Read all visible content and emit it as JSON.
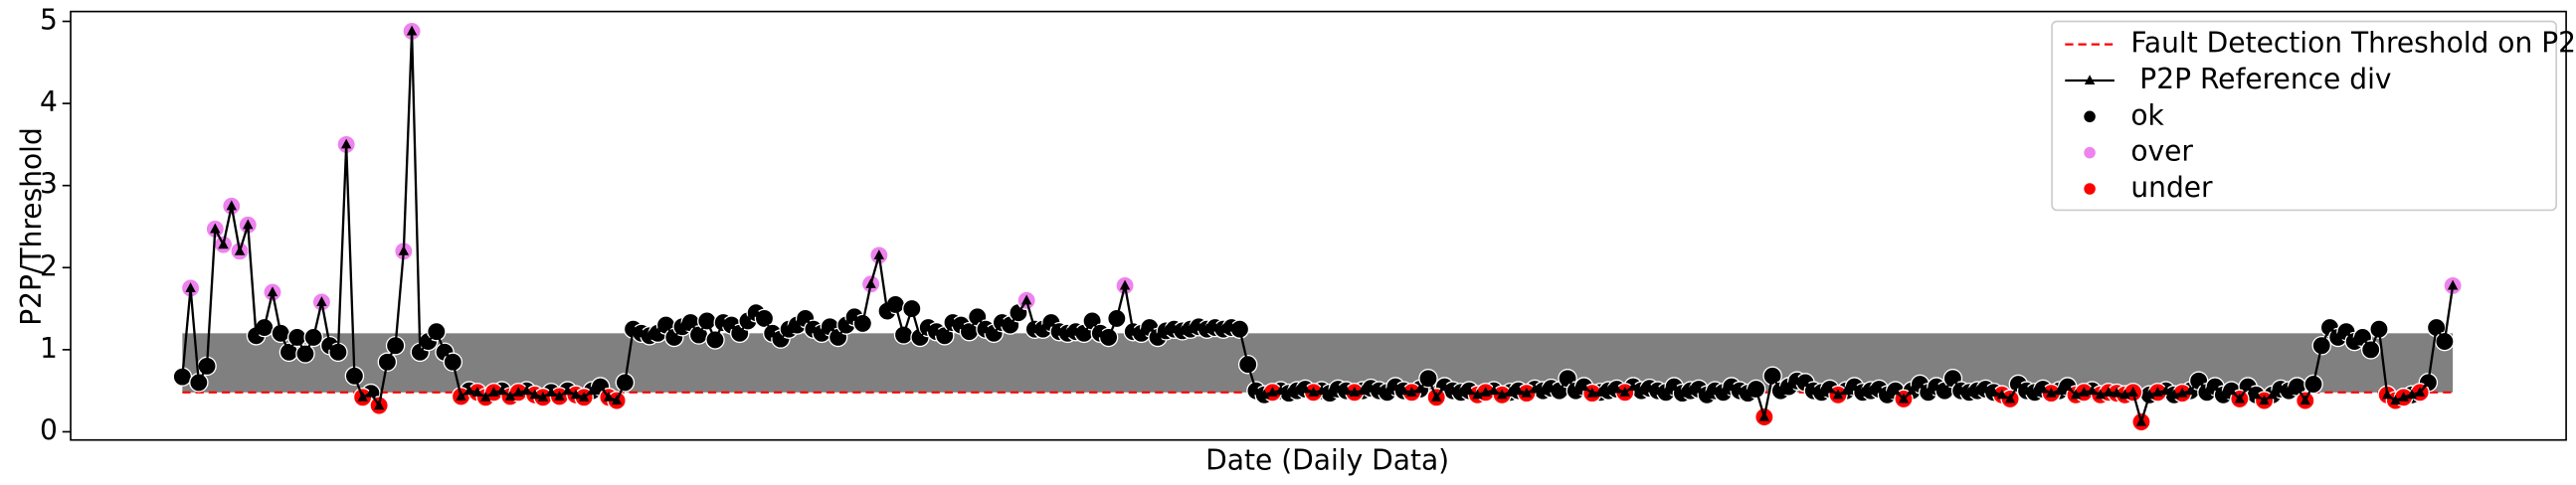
{
  "chart_data": {
    "type": "line",
    "ylabel": "P2P/Threshold",
    "xlabel": "Date (Daily Data)",
    "ylim": [
      -0.1,
      5.12
    ],
    "yticks": [
      0,
      1,
      2,
      3,
      4,
      5
    ],
    "legend": "upper right",
    "threshold": {
      "name": "Fault Detection Threshold on P2P",
      "color": "#ff0000",
      "value": 0.48
    },
    "band": {
      "color": "#808080",
      "upper": 1.2
    },
    "series": [
      {
        "name": " P2P Reference div",
        "color": "#000000",
        "values": [
          0.67,
          1.75,
          0.6,
          0.8,
          2.47,
          2.28,
          2.75,
          2.2,
          2.52,
          1.17,
          1.27,
          1.7,
          1.2,
          0.97,
          1.15,
          0.95,
          1.15,
          1.58,
          1.05,
          0.97,
          3.5,
          0.68,
          0.42,
          0.47,
          0.32,
          0.85,
          1.05,
          2.2,
          4.88,
          0.97,
          1.1,
          1.22,
          0.97,
          0.85,
          0.43,
          0.5,
          0.48,
          0.42,
          0.48,
          0.5,
          0.43,
          0.48,
          0.5,
          0.45,
          0.42,
          0.48,
          0.43,
          0.5,
          0.45,
          0.42,
          0.5,
          0.55,
          0.42,
          0.38,
          0.6,
          1.25,
          1.2,
          1.17,
          1.2,
          1.3,
          1.15,
          1.28,
          1.33,
          1.18,
          1.35,
          1.12,
          1.33,
          1.3,
          1.2,
          1.35,
          1.45,
          1.38,
          1.2,
          1.13,
          1.25,
          1.3,
          1.38,
          1.25,
          1.2,
          1.28,
          1.15,
          1.3,
          1.4,
          1.32,
          1.8,
          2.15,
          1.47,
          1.55,
          1.18,
          1.5,
          1.15,
          1.27,
          1.22,
          1.17,
          1.33,
          1.3,
          1.22,
          1.4,
          1.25,
          1.2,
          1.33,
          1.3,
          1.45,
          1.6,
          1.25,
          1.25,
          1.33,
          1.22,
          1.2,
          1.22,
          1.2,
          1.35,
          1.2,
          1.15,
          1.38,
          1.78,
          1.22,
          1.2,
          1.27,
          1.15,
          1.23,
          1.25,
          1.23,
          1.25,
          1.28,
          1.25,
          1.27,
          1.25,
          1.27,
          1.25,
          0.82,
          0.5,
          0.45,
          0.48,
          0.5,
          0.47,
          0.5,
          0.52,
          0.48,
          0.5,
          0.47,
          0.52,
          0.5,
          0.48,
          0.5,
          0.53,
          0.5,
          0.48,
          0.55,
          0.5,
          0.48,
          0.52,
          0.65,
          0.42,
          0.55,
          0.5,
          0.48,
          0.5,
          0.45,
          0.48,
          0.5,
          0.45,
          0.48,
          0.5,
          0.47,
          0.52,
          0.5,
          0.53,
          0.5,
          0.65,
          0.5,
          0.55,
          0.47,
          0.48,
          0.5,
          0.52,
          0.48,
          0.55,
          0.5,
          0.53,
          0.5,
          0.48,
          0.55,
          0.47,
          0.5,
          0.52,
          0.45,
          0.5,
          0.48,
          0.55,
          0.5,
          0.47,
          0.52,
          0.18,
          0.68,
          0.5,
          0.55,
          0.62,
          0.6,
          0.5,
          0.48,
          0.52,
          0.45,
          0.5,
          0.55,
          0.48,
          0.5,
          0.52,
          0.45,
          0.5,
          0.4,
          0.5,
          0.58,
          0.48,
          0.55,
          0.5,
          0.65,
          0.5,
          0.48,
          0.5,
          0.52,
          0.48,
          0.45,
          0.4,
          0.58,
          0.5,
          0.48,
          0.52,
          0.47,
          0.5,
          0.55,
          0.45,
          0.48,
          0.5,
          0.45,
          0.48,
          0.47,
          0.45,
          0.48,
          0.12,
          0.45,
          0.48,
          0.5,
          0.45,
          0.47,
          0.5,
          0.62,
          0.48,
          0.55,
          0.45,
          0.5,
          0.4,
          0.55,
          0.45,
          0.38,
          0.45,
          0.52,
          0.5,
          0.55,
          0.38,
          0.58,
          1.05,
          1.27,
          1.15,
          1.22,
          1.1,
          1.15,
          1.0,
          1.25,
          0.45,
          0.38,
          0.42,
          0.45,
          0.48,
          0.6,
          1.27,
          1.1,
          1.78
        ]
      },
      {
        "name": "ok",
        "type": "scatter",
        "color": "#000000",
        "values": [
          0.67,
          null,
          0.6,
          0.8,
          null,
          null,
          null,
          null,
          null,
          1.17,
          1.27,
          null,
          1.2,
          0.97,
          1.15,
          0.95,
          1.15,
          null,
          1.05,
          0.97,
          null,
          0.68,
          null,
          0.47,
          null,
          0.85,
          1.05,
          null,
          null,
          0.97,
          1.1,
          1.22,
          0.97,
          0.85,
          null,
          0.5,
          null,
          null,
          null,
          0.5,
          null,
          null,
          0.5,
          null,
          null,
          0.48,
          null,
          0.5,
          null,
          null,
          0.5,
          0.55,
          null,
          null,
          0.6,
          1.25,
          1.2,
          1.17,
          1.2,
          1.3,
          1.15,
          1.28,
          1.33,
          1.18,
          1.35,
          1.12,
          1.33,
          1.3,
          1.2,
          1.35,
          1.45,
          1.38,
          1.2,
          1.13,
          1.25,
          1.3,
          1.38,
          1.25,
          1.2,
          1.28,
          1.15,
          1.3,
          1.4,
          1.32,
          null,
          null,
          1.47,
          1.55,
          1.18,
          1.5,
          1.15,
          1.27,
          1.22,
          1.17,
          1.33,
          1.3,
          1.22,
          1.4,
          1.25,
          1.2,
          1.33,
          1.3,
          1.45,
          null,
          1.25,
          1.25,
          1.33,
          1.22,
          1.2,
          1.22,
          1.2,
          1.35,
          1.2,
          1.15,
          1.38,
          null,
          1.22,
          1.2,
          1.27,
          1.15,
          1.23,
          1.25,
          1.23,
          1.25,
          1.28,
          1.25,
          1.27,
          1.25,
          1.27,
          1.25,
          0.82,
          0.5,
          0.45,
          null,
          0.5,
          0.47,
          0.5,
          0.52,
          null,
          0.5,
          0.47,
          0.52,
          0.5,
          null,
          0.5,
          0.53,
          0.5,
          0.48,
          0.55,
          0.5,
          null,
          0.52,
          0.65,
          null,
          0.55,
          0.5,
          0.48,
          0.5,
          null,
          null,
          0.5,
          null,
          0.48,
          0.5,
          null,
          0.52,
          0.5,
          0.53,
          0.5,
          0.65,
          0.5,
          0.55,
          null,
          0.48,
          0.5,
          0.52,
          null,
          0.55,
          0.5,
          0.53,
          0.5,
          0.48,
          0.55,
          0.47,
          0.5,
          0.52,
          0.45,
          0.5,
          0.48,
          0.55,
          0.5,
          0.47,
          0.52,
          null,
          0.68,
          0.5,
          0.55,
          0.62,
          0.6,
          0.5,
          0.48,
          0.52,
          null,
          0.5,
          0.55,
          0.48,
          0.5,
          0.52,
          0.45,
          0.5,
          null,
          0.5,
          0.58,
          0.48,
          0.55,
          0.5,
          0.65,
          0.5,
          0.48,
          0.5,
          0.52,
          0.48,
          null,
          null,
          0.58,
          0.5,
          0.48,
          0.52,
          null,
          0.5,
          0.55,
          null,
          null,
          0.5,
          null,
          null,
          null,
          null,
          null,
          null,
          0.45,
          null,
          0.5,
          0.45,
          null,
          0.5,
          0.62,
          0.48,
          0.55,
          0.45,
          0.5,
          null,
          0.55,
          0.45,
          null,
          0.45,
          0.52,
          0.5,
          0.55,
          null,
          0.58,
          1.05,
          1.27,
          1.15,
          1.22,
          1.1,
          1.15,
          1.0,
          1.25,
          null,
          null,
          null,
          0.45,
          null,
          0.6,
          1.27,
          1.1,
          null
        ]
      },
      {
        "name": "over",
        "type": "scatter",
        "color": "#ee82ee",
        "values": [
          null,
          1.75,
          null,
          null,
          2.47,
          2.28,
          2.75,
          2.2,
          2.52,
          null,
          null,
          1.7,
          null,
          null,
          null,
          null,
          null,
          1.58,
          null,
          null,
          3.5,
          null,
          null,
          null,
          null,
          null,
          null,
          2.2,
          4.88,
          null,
          null,
          null,
          null,
          null,
          null,
          null,
          null,
          null,
          null,
          null,
          null,
          null,
          null,
          null,
          null,
          null,
          null,
          null,
          null,
          null,
          null,
          null,
          null,
          null,
          null,
          null,
          null,
          null,
          null,
          null,
          null,
          null,
          null,
          null,
          null,
          null,
          null,
          null,
          null,
          null,
          null,
          null,
          null,
          null,
          null,
          null,
          null,
          null,
          null,
          null,
          null,
          null,
          null,
          null,
          1.8,
          2.15,
          null,
          null,
          null,
          null,
          null,
          null,
          null,
          null,
          null,
          null,
          null,
          null,
          null,
          null,
          null,
          null,
          null,
          1.6,
          null,
          null,
          null,
          null,
          null,
          null,
          null,
          null,
          null,
          null,
          null,
          1.78,
          null,
          null,
          null,
          null,
          null,
          null,
          null,
          null,
          null,
          null,
          null,
          null,
          null,
          null,
          null,
          null,
          null,
          null,
          null,
          null,
          null,
          null,
          null,
          null,
          null,
          null,
          null,
          null,
          null,
          null,
          null,
          null,
          null,
          null,
          null,
          null,
          null,
          null,
          null,
          null,
          null,
          null,
          null,
          null,
          null,
          null,
          null,
          null,
          null,
          null,
          null,
          null,
          null,
          null,
          null,
          null,
          null,
          null,
          null,
          null,
          null,
          null,
          null,
          null,
          null,
          null,
          null,
          null,
          null,
          null,
          null,
          null,
          null,
          null,
          null,
          null,
          null,
          null,
          null,
          null,
          null,
          null,
          null,
          null,
          null,
          null,
          null,
          null,
          null,
          null,
          null,
          null,
          null,
          null,
          null,
          null,
          null,
          null,
          null,
          null,
          null,
          null,
          null,
          null,
          null,
          null,
          null,
          null,
          null,
          null,
          null,
          null,
          null,
          null,
          null,
          null,
          null,
          null,
          null,
          null,
          null,
          null,
          null,
          null,
          null,
          null,
          null,
          null,
          null,
          null,
          null,
          null,
          null,
          null,
          null,
          null,
          null,
          null,
          null,
          null,
          null,
          null,
          null,
          null,
          null,
          null,
          null,
          null,
          null,
          null,
          null,
          null,
          null,
          null,
          null,
          null,
          null,
          null,
          null,
          null,
          null,
          1.78
        ]
      },
      {
        "name": "under",
        "type": "scatter",
        "color": "#ff0000",
        "values": [
          null,
          null,
          null,
          null,
          null,
          null,
          null,
          null,
          null,
          null,
          null,
          null,
          null,
          null,
          null,
          null,
          null,
          null,
          null,
          null,
          null,
          null,
          0.42,
          null,
          0.32,
          null,
          null,
          null,
          null,
          null,
          null,
          null,
          null,
          null,
          0.43,
          null,
          0.48,
          0.42,
          0.48,
          null,
          0.43,
          0.48,
          null,
          0.45,
          0.42,
          null,
          0.43,
          null,
          0.45,
          0.42,
          null,
          null,
          0.42,
          0.38,
          null,
          null,
          null,
          null,
          null,
          null,
          null,
          null,
          null,
          null,
          null,
          null,
          null,
          null,
          null,
          null,
          null,
          null,
          null,
          null,
          null,
          null,
          null,
          null,
          null,
          null,
          null,
          null,
          null,
          null,
          null,
          null,
          null,
          null,
          null,
          null,
          null,
          null,
          null,
          null,
          null,
          null,
          null,
          null,
          null,
          null,
          null,
          null,
          null,
          null,
          null,
          null,
          null,
          null,
          null,
          null,
          null,
          null,
          null,
          null,
          null,
          null,
          null,
          null,
          null,
          null,
          null,
          null,
          null,
          null,
          null,
          null,
          null,
          null,
          null,
          null,
          null,
          null,
          null,
          0.48,
          null,
          null,
          null,
          null,
          0.48,
          null,
          null,
          null,
          null,
          0.48,
          null,
          null,
          null,
          null,
          null,
          null,
          0.48,
          null,
          null,
          0.42,
          null,
          null,
          null,
          null,
          0.45,
          0.48,
          null,
          0.45,
          null,
          null,
          0.47,
          null,
          null,
          null,
          null,
          null,
          null,
          null,
          0.47,
          null,
          null,
          null,
          0.48,
          null,
          null,
          null,
          null,
          null,
          null,
          null,
          null,
          null,
          null,
          null,
          null,
          null,
          null,
          null,
          null,
          0.18,
          null,
          null,
          null,
          null,
          null,
          null,
          null,
          null,
          0.45,
          null,
          null,
          null,
          null,
          null,
          null,
          null,
          0.4,
          null,
          null,
          null,
          null,
          null,
          null,
          null,
          null,
          null,
          null,
          null,
          0.45,
          0.4,
          null,
          null,
          null,
          null,
          0.47,
          null,
          null,
          0.45,
          0.48,
          null,
          0.45,
          0.48,
          0.47,
          0.45,
          0.48,
          0.12,
          null,
          0.48,
          null,
          null,
          0.47,
          null,
          null,
          null,
          null,
          null,
          null,
          0.4,
          null,
          null,
          0.38,
          null,
          null,
          null,
          null,
          0.38,
          null,
          null,
          null,
          null,
          null,
          null,
          null,
          null,
          null,
          0.45,
          0.38,
          0.42,
          null,
          0.48,
          null,
          null,
          null,
          null
        ]
      }
    ]
  }
}
